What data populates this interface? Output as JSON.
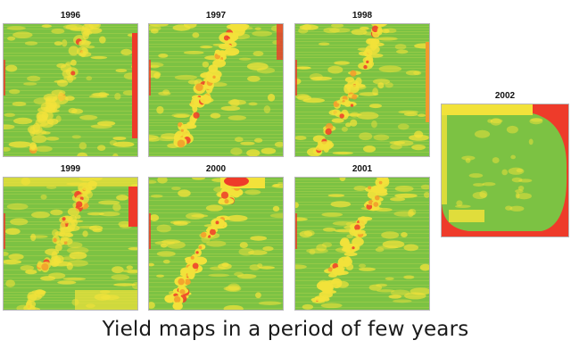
{
  "figure": {
    "caption": "Yield maps in a period of few years",
    "colors": {
      "high": "#7cc243",
      "medium": "#f2e23a",
      "low": "#ee3b2a",
      "frame": "#b7b7b7"
    },
    "maps": [
      {
        "year": "1996",
        "pattern": "rectangular field, mostly green with faint yellow mottling; red strip on right edge"
      },
      {
        "year": "1997",
        "pattern": "rectangular field with diagonal yellow/red band running from lower-left to upper-right"
      },
      {
        "year": "1998",
        "pattern": "rectangular field, green with yellow diagonal band and yellow-orange patches on right"
      },
      {
        "year": "1999",
        "pattern": "rectangular field, green with yellow bands at top and bottom; red patch on right edge"
      },
      {
        "year": "2000",
        "pattern": "rectangular field with strong diagonal red/orange band and red area at top right"
      },
      {
        "year": "2001",
        "pattern": "rectangular field with diagonal yellow/red patchy band through the middle"
      },
      {
        "year": "2002",
        "pattern": "rounded field, mostly green with red areas at top-right corner and bottom corners"
      }
    ]
  }
}
